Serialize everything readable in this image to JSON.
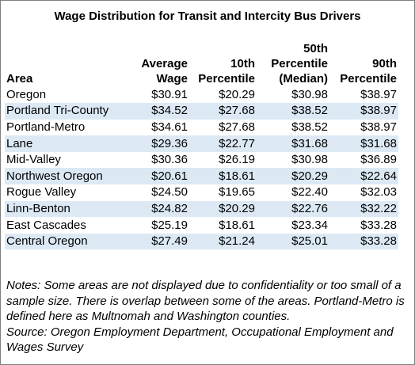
{
  "title": "Wage Distribution for Transit and Intercity Bus Drivers",
  "columns": [
    {
      "key": "area",
      "lines": [
        "Area"
      ]
    },
    {
      "key": "avg",
      "lines": [
        "Average",
        "Wage"
      ]
    },
    {
      "key": "p10",
      "lines": [
        "10th",
        "Percentile"
      ]
    },
    {
      "key": "p50",
      "lines": [
        "50th",
        "Percentile",
        "(Median)"
      ]
    },
    {
      "key": "p90",
      "lines": [
        "90th",
        "Percentile"
      ]
    }
  ],
  "rows": [
    [
      "Oregon",
      "$30.91",
      "$20.29",
      "$30.98",
      "$38.97"
    ],
    [
      "Portland Tri-County",
      "$34.52",
      "$27.68",
      "$38.52",
      "$38.97"
    ],
    [
      "Portland-Metro",
      "$34.61",
      "$27.68",
      "$38.52",
      "$38.97"
    ],
    [
      "Lane",
      "$29.36",
      "$22.77",
      "$31.68",
      "$31.68"
    ],
    [
      "Mid-Valley",
      "$30.36",
      "$26.19",
      "$30.98",
      "$36.89"
    ],
    [
      "Northwest Oregon",
      "$20.61",
      "$18.61",
      "$20.29",
      "$22.64"
    ],
    [
      "Rogue Valley",
      "$24.50",
      "$19.65",
      "$22.40",
      "$32.03"
    ],
    [
      "Linn-Benton",
      "$24.82",
      "$20.29",
      "$22.76",
      "$32.22"
    ],
    [
      "East Cascades",
      "$25.19",
      "$18.61",
      "$23.34",
      "$33.28"
    ],
    [
      "Central Oregon",
      "$27.49",
      "$21.24",
      "$25.01",
      "$33.28"
    ]
  ],
  "notes": "Notes: Some areas are not displayed due to confidentiality or too small of a sample size. There is overlap between some of the areas. Portland-Metro is defined here as Multnomah and Washington counties.",
  "source": "Source: Oregon Employment Department, Occupational Employment and Wages Survey",
  "colors": {
    "stripe": "#dce9f5",
    "border": "#7f7f7f"
  }
}
